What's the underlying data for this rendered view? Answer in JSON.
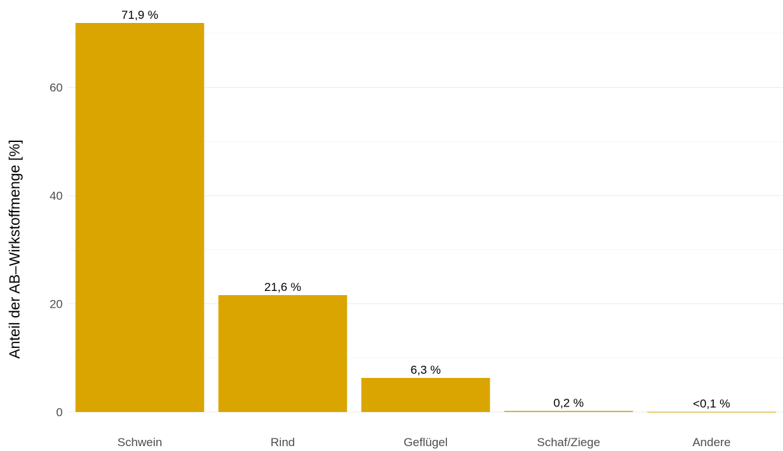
{
  "chart_data": {
    "type": "bar",
    "title": "",
    "xlabel": "",
    "ylabel": "Anteil der AB–Wirkstoffmenge [%]",
    "categories": [
      "Schwein",
      "Rind",
      "Geflügel",
      "Schaf/Ziege",
      "Andere"
    ],
    "values": [
      71.9,
      21.6,
      6.3,
      0.2,
      0.05
    ],
    "data_labels": [
      "71,9 %",
      "21,6 %",
      "6,3 %",
      "0,2 %",
      "<0,1 %"
    ],
    "ylim": [
      0,
      75
    ],
    "yticks": [
      0,
      20,
      40,
      60
    ],
    "grid": true,
    "legend": "none",
    "bar_color": "#DAA500"
  }
}
